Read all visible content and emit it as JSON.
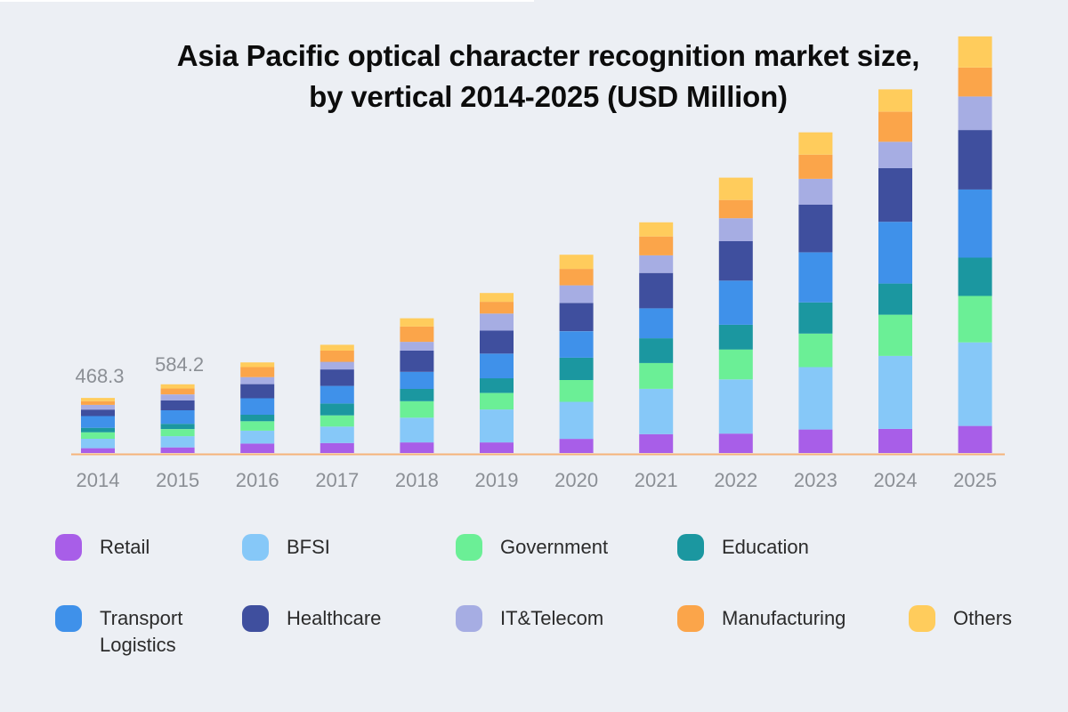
{
  "title_line1": "Asia Pacific optical character recognition market size,",
  "title_line2": "by vertical 2014-2025 (USD Million)",
  "colors": {
    "Retail": "#a85ee8",
    "BFSI": "#86c8f8",
    "Government": "#6bef96",
    "Education": "#1b97a0",
    "Transport Logistics": "#3f91ea",
    "Healthcare": "#3f4f9e",
    "IT&Telecom": "#a6ade3",
    "Manufacturing": "#fba54a",
    "Others": "#ffcc5c",
    "axis_line": "#f6b37a",
    "tick_text": "#8b8f95",
    "background": "#eceff4"
  },
  "chart_data": {
    "type": "bar",
    "stacked": true,
    "title": "Asia Pacific optical character recognition market size, by vertical 2014-2025 (USD Million)",
    "categories": [
      "2014",
      "2015",
      "2016",
      "2017",
      "2018",
      "2019",
      "2020",
      "2021",
      "2022",
      "2023",
      "2024",
      "2025"
    ],
    "annotations": [
      {
        "category": "2014",
        "text": "468.3"
      },
      {
        "category": "2015",
        "text": "584.2"
      }
    ],
    "series": [
      {
        "name": "Retail",
        "values": [
          41,
          48,
          80,
          85,
          90,
          90,
          120,
          160,
          165,
          200,
          205,
          230
        ]
      },
      {
        "name": "BFSI",
        "values": [
          80,
          95,
          110,
          140,
          210,
          280,
          315,
          385,
          460,
          530,
          620,
          710
        ]
      },
      {
        "name": "Government",
        "values": [
          55,
          60,
          80,
          95,
          140,
          140,
          185,
          220,
          255,
          285,
          350,
          395
        ]
      },
      {
        "name": "Education",
        "values": [
          38,
          45,
          55,
          100,
          105,
          125,
          190,
          210,
          210,
          265,
          265,
          325
        ]
      },
      {
        "name": "Transport Logistics",
        "values": [
          100,
          115,
          140,
          150,
          145,
          210,
          225,
          255,
          375,
          425,
          525,
          580
        ]
      },
      {
        "name": "Healthcare",
        "values": [
          55,
          85,
          120,
          140,
          180,
          195,
          240,
          300,
          335,
          405,
          455,
          505
        ]
      },
      {
        "name": "IT&Telecom",
        "values": [
          40,
          50,
          60,
          65,
          75,
          145,
          150,
          150,
          195,
          220,
          225,
          285
        ]
      },
      {
        "name": "Manufacturing",
        "values": [
          31,
          50,
          85,
          95,
          130,
          100,
          140,
          160,
          155,
          205,
          255,
          245
        ]
      },
      {
        "name": "Others",
        "values": [
          28,
          36,
          40,
          50,
          70,
          75,
          120,
          120,
          190,
          190,
          190,
          265
        ]
      }
    ],
    "xlabel": "",
    "ylabel": "",
    "ylim": [
      0,
      3600
    ],
    "grid": false,
    "legend_position": "bottom"
  },
  "legend": [
    {
      "label": "Retail",
      "color_key": "Retail"
    },
    {
      "label": "BFSI",
      "color_key": "BFSI"
    },
    {
      "label": "Government",
      "color_key": "Government"
    },
    {
      "label": "Education",
      "color_key": "Education"
    },
    {
      "label": "Transport\nLogistics",
      "color_key": "Transport Logistics"
    },
    {
      "label": "Healthcare",
      "color_key": "Healthcare"
    },
    {
      "label": "IT&Telecom",
      "color_key": "IT&Telecom"
    },
    {
      "label": "Manufacturing",
      "color_key": "Manufacturing"
    },
    {
      "label": "Others",
      "color_key": "Others"
    }
  ]
}
